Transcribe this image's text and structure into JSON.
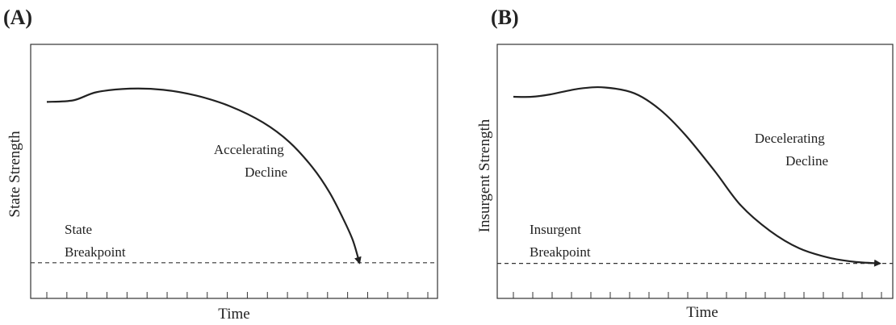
{
  "chart_data": [
    {
      "type": "line",
      "panel_label": "(A)",
      "xlabel": "Time",
      "ylabel": "State Strength",
      "ylim": [
        0,
        100
      ],
      "x_ticks": 20,
      "series": [
        {
          "x": [
            0,
            0.08,
            0.15,
            0.25,
            0.35,
            0.45,
            0.55,
            0.65,
            0.73,
            0.8,
            0.85,
            0.89,
            0.92,
            0.94
          ],
          "values": [
            75.3,
            76.0,
            79.5,
            81.0,
            80.5,
            78.0,
            73.5,
            66.5,
            58.0,
            47.0,
            36.5,
            25.5,
            16.0,
            6.3
          ]
        }
      ],
      "threshold": 6.3,
      "annotations": [
        {
          "key": "curve",
          "lines": [
            "Accelerating",
            "Decline"
          ]
        },
        {
          "key": "threshold",
          "lines": [
            "State",
            "Breakpoint"
          ]
        }
      ]
    },
    {
      "type": "line",
      "panel_label": "(B)",
      "xlabel": "Time",
      "ylabel": "Insurgent Strength",
      "ylim": [
        0,
        100
      ],
      "x_ticks": 20,
      "series": [
        {
          "x": [
            0,
            0.05,
            0.1,
            0.18,
            0.25,
            0.33,
            0.4,
            0.47,
            0.55,
            0.62,
            0.7,
            0.78,
            0.86,
            0.93,
            1.0
          ],
          "values": [
            77.5,
            77.5,
            78.5,
            81.0,
            81.5,
            79.0,
            72.0,
            61.0,
            45.5,
            31.0,
            20.0,
            12.5,
            8.5,
            6.7,
            6.0
          ]
        }
      ],
      "threshold": 6.0,
      "annotations": [
        {
          "key": "curve",
          "lines": [
            "Decelerating",
            "Decline"
          ]
        },
        {
          "key": "threshold",
          "lines": [
            "Insurgent",
            "Breakpoint"
          ]
        }
      ]
    }
  ]
}
